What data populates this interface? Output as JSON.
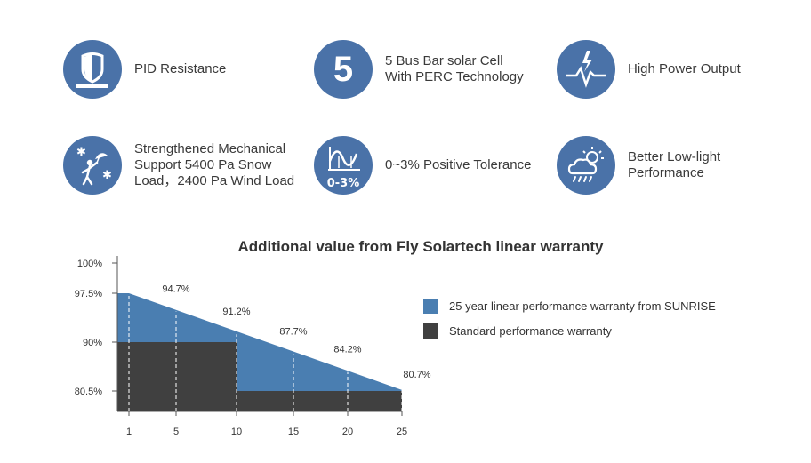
{
  "features": [
    {
      "label": "PID Resistance",
      "icon": "shield-icon"
    },
    {
      "label": "5 Bus Bar solar Cell\nWith PERC Technology",
      "icon": "number-five-icon",
      "icon_text": "5"
    },
    {
      "label": "High Power Output",
      "icon": "lightning-pulse-icon"
    },
    {
      "label": "Strengthened Mechanical\nSupport 5400 Pa Snow\nLoad，2400 Pa Wind Load",
      "icon": "snow-wind-person-icon"
    },
    {
      "label": "0~3% Positive Tolerance",
      "icon": "tolerance-curve-icon",
      "icon_text": "0-3%"
    },
    {
      "label": "Better Low-light\nPerformance",
      "icon": "cloud-sun-rain-icon"
    }
  ],
  "colors": {
    "accent": "#4a72a8",
    "linear": "#4a7eb1",
    "standard": "#404040"
  },
  "chart_data": {
    "type": "area",
    "title": "Additional value from Fly Solartech linear warranty",
    "xlabel": "",
    "ylabel": "",
    "x_ticks": [
      "1",
      "5",
      "10",
      "15",
      "20",
      "25"
    ],
    "y_ticks": [
      "100%",
      "97.5%",
      "90%",
      "80.5%"
    ],
    "y_tick_values": [
      100,
      97.5,
      90,
      80.5
    ],
    "x_tick_values": [
      1,
      5,
      10,
      15,
      20,
      25
    ],
    "series": [
      {
        "name": "25 year linear performance warranty from SUNRISE",
        "x": [
          1,
          25
        ],
        "y": [
          97.5,
          80.7
        ]
      },
      {
        "name": "Standard performance warranty",
        "x": [
          0,
          10,
          10,
          25
        ],
        "y": [
          90,
          90,
          80.5,
          80.5
        ]
      }
    ],
    "data_labels": [
      {
        "x": 5,
        "text": "94.7%"
      },
      {
        "x": 10,
        "text": "91.2%"
      },
      {
        "x": 15,
        "text": "87.7%"
      },
      {
        "x": 20,
        "text": "84.2%"
      },
      {
        "x": 25,
        "text": "80.7%"
      }
    ],
    "legend_position": "right"
  }
}
